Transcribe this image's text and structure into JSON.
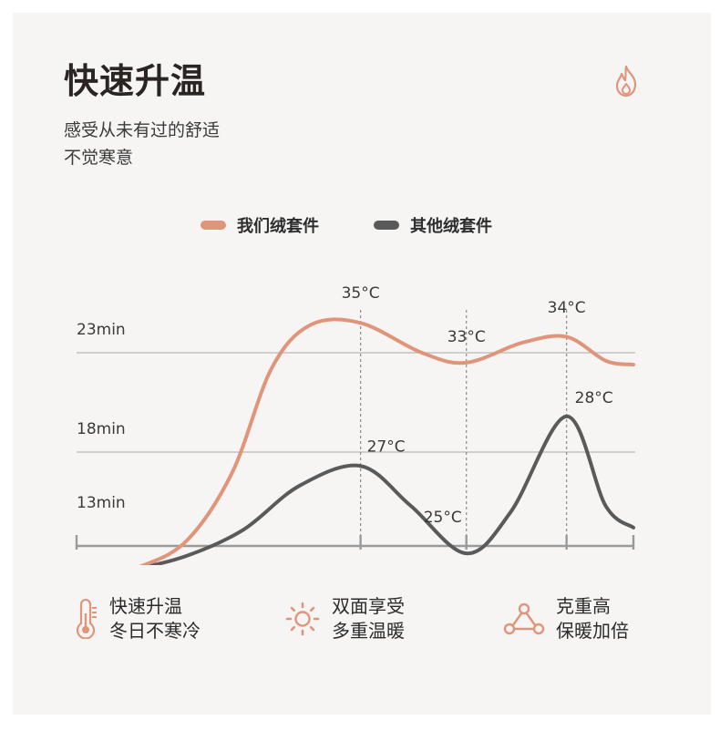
{
  "header": {
    "title": "快速升温",
    "subtitle_line1": "感受从未有过的舒适",
    "subtitle_line2": "不觉寒意"
  },
  "legend": [
    {
      "label": "我们绒套件",
      "color": "#e0957b"
    },
    {
      "label": "其他绒套件",
      "color": "#5a5a5a"
    }
  ],
  "chart_data": {
    "type": "line",
    "title": "",
    "xlabel": "",
    "ylabel": "",
    "y_tick_labels": [
      "13min",
      "18min",
      "23min"
    ],
    "reference_lines": [
      "23min",
      "18min"
    ],
    "grid": false,
    "legend_position": "top",
    "series": [
      {
        "name": "我们绒套件",
        "color": "#e0957b",
        "points": [
          {
            "x": 0,
            "y": 11.8
          },
          {
            "x": 0.05,
            "y": 11.9
          },
          {
            "x": 0.12,
            "y": 12.3
          },
          {
            "x": 0.2,
            "y": 13.6
          },
          {
            "x": 0.28,
            "y": 17.0
          },
          {
            "x": 0.35,
            "y": 22.2
          },
          {
            "x": 0.42,
            "y": 24.4
          },
          {
            "x": 0.51,
            "y": 24.5
          },
          {
            "x": 0.62,
            "y": 23.0
          },
          {
            "x": 0.7,
            "y": 22.5
          },
          {
            "x": 0.8,
            "y": 23.5
          },
          {
            "x": 0.88,
            "y": 23.8
          },
          {
            "x": 0.95,
            "y": 22.6
          },
          {
            "x": 1.0,
            "y": 22.4
          }
        ],
        "annotations": [
          {
            "x": 0.51,
            "y": 24.5,
            "label": "35°C"
          },
          {
            "x": 0.7,
            "y": 22.5,
            "label": "33°C"
          },
          {
            "x": 0.88,
            "y": 23.8,
            "label": "34°C"
          }
        ]
      },
      {
        "name": "其他绒套件",
        "color": "#5a5a5a",
        "points": [
          {
            "x": 0,
            "y": 11.8
          },
          {
            "x": 0.1,
            "y": 12.1
          },
          {
            "x": 0.2,
            "y": 12.8
          },
          {
            "x": 0.3,
            "y": 14.1
          },
          {
            "x": 0.4,
            "y": 16.3
          },
          {
            "x": 0.51,
            "y": 17.3
          },
          {
            "x": 0.6,
            "y": 15.3
          },
          {
            "x": 0.7,
            "y": 12.9
          },
          {
            "x": 0.78,
            "y": 15.0
          },
          {
            "x": 0.88,
            "y": 19.8
          },
          {
            "x": 0.95,
            "y": 15.3
          },
          {
            "x": 1.0,
            "y": 14.2
          }
        ],
        "annotations": [
          {
            "x": 0.51,
            "y": 17.3,
            "label": "27°C"
          },
          {
            "x": 0.7,
            "y": 12.9,
            "label": "25°C"
          },
          {
            "x": 0.88,
            "y": 19.8,
            "label": "28°C"
          }
        ]
      }
    ],
    "x_marker_positions": [
      0,
      0.51,
      0.7,
      0.88,
      1.0
    ],
    "dashed_verticals": [
      0.51,
      0.7,
      0.88
    ]
  },
  "features": [
    {
      "icon": "thermometer-icon",
      "line1": "快速升温",
      "line2": "冬日不寒冷"
    },
    {
      "icon": "sun-icon",
      "line1": "双面享受",
      "line2": "多重温暖"
    },
    {
      "icon": "triangle-network-icon",
      "line1": "克重高",
      "line2": "保暖加倍"
    }
  ],
  "colors": {
    "accent": "#e0957b",
    "dark": "#5a5a5a",
    "background": "#f6f5f4"
  }
}
